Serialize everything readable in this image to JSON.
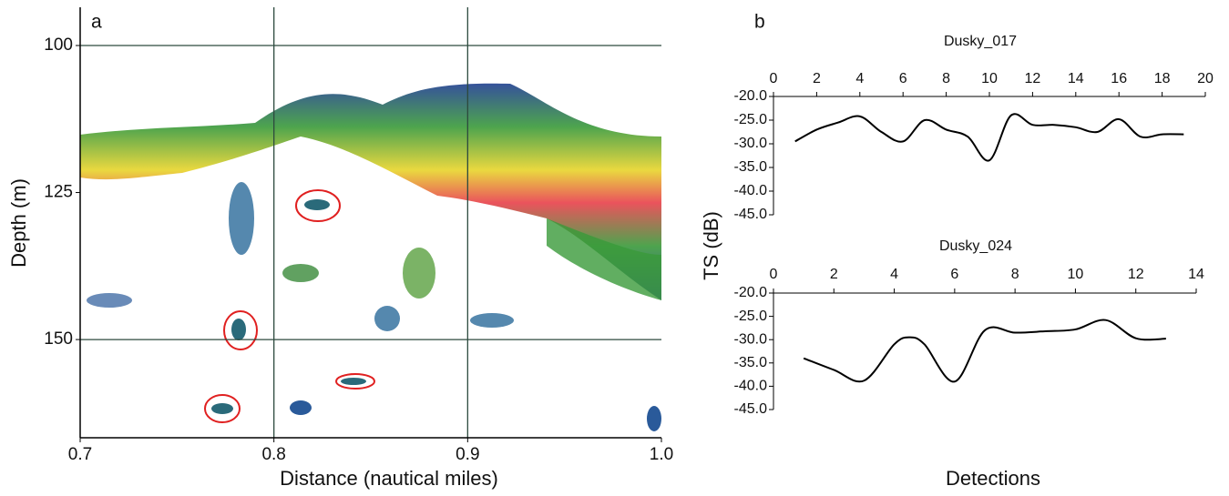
{
  "chart_data": [
    {
      "type": "echogram",
      "panel": "a",
      "xlabel": "Distance (nautical miles)",
      "ylabel": "Depth (m)",
      "xlim": [
        0.7,
        1.0
      ],
      "xticks": [
        0.7,
        0.8,
        0.9,
        {
          "value": 1.0,
          "label": "1.0"
        }
      ],
      "ylim": [
        166.7,
        93.5
      ],
      "yticks": [
        100,
        125,
        150
      ],
      "grid_x": [
        0.8,
        0.9
      ],
      "grid_y": [
        100,
        150
      ]
    },
    {
      "type": "line",
      "panel": "b",
      "title": "Dusky_017",
      "ylabel": "TS (dB)",
      "xlim": [
        0,
        20
      ],
      "xticks": [
        0,
        2,
        4,
        6,
        8,
        10,
        12,
        14,
        16,
        18,
        20
      ],
      "ylim": [
        -45,
        -20
      ],
      "yticks": [
        {
          "value": -20,
          "label": "-20.0"
        },
        {
          "value": -25,
          "label": "-25.0"
        },
        {
          "value": -30,
          "label": "-30.0"
        },
        {
          "value": -35,
          "label": "-35.0"
        },
        {
          "value": -40,
          "label": "-40.0"
        },
        {
          "value": -45,
          "label": "-45.0"
        }
      ],
      "color": "#000000",
      "x": [
        1,
        2,
        3,
        4,
        5,
        6,
        7,
        8,
        9,
        10,
        11,
        12,
        13,
        14,
        15,
        16,
        17,
        18,
        19
      ],
      "values": [
        -29.5,
        -27,
        -25.5,
        -24.2,
        -27.5,
        -29.5,
        -25,
        -27,
        -28.5,
        -33.5,
        -24,
        -26,
        -26,
        -26.5,
        -27.5,
        -24.8,
        -28.5,
        -28,
        -28
      ]
    },
    {
      "type": "line",
      "title": "Dusky_024",
      "xlabel": "Detections",
      "xlim": [
        0,
        14
      ],
      "xticks": [
        0,
        2,
        4,
        6,
        8,
        10,
        12,
        14
      ],
      "ylim": [
        -45,
        -20
      ],
      "yticks": [
        {
          "value": -20,
          "label": "-20.0"
        },
        {
          "value": -25,
          "label": "-25.0"
        },
        {
          "value": -30,
          "label": "-30.0"
        },
        {
          "value": -35,
          "label": "-35.0"
        },
        {
          "value": -40,
          "label": "-40.0"
        },
        {
          "value": -45,
          "label": "-45.0"
        }
      ],
      "color": "#000000",
      "x": [
        1,
        2,
        3,
        4,
        4.5,
        5,
        6,
        7,
        8,
        9,
        10,
        11,
        12,
        13
      ],
      "values": [
        -34,
        -36.5,
        -38.8,
        -31,
        -29.5,
        -31,
        -39,
        -28,
        -28.5,
        -28.2,
        -27.8,
        -25.8,
        -29.7,
        -29.8
      ]
    }
  ]
}
